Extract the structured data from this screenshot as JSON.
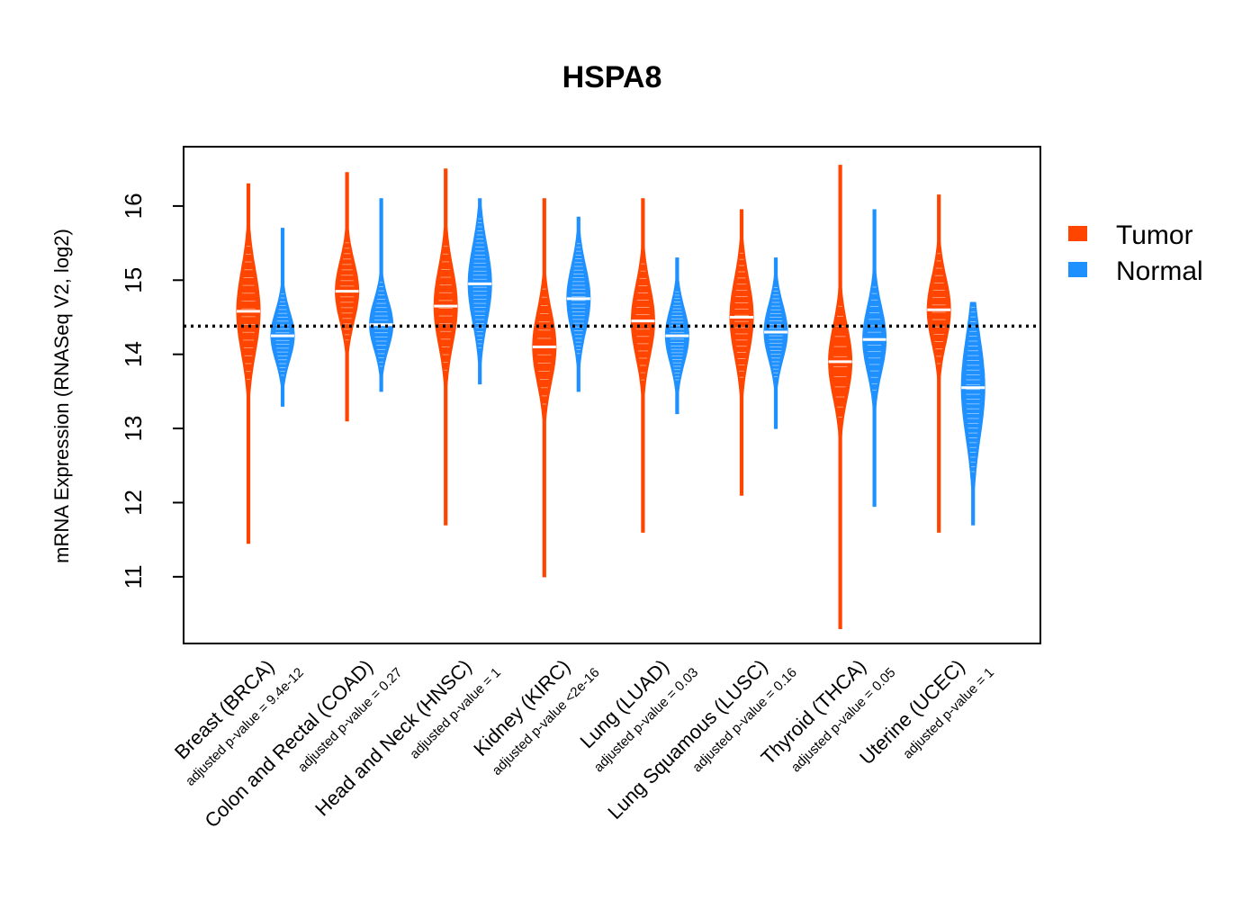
{
  "chart_data": {
    "type": "violin",
    "title": "HSPA8",
    "ylabel": "mRNA Expression (RNASeq V2, log2)",
    "xlabel": "",
    "ylim": [
      10.1,
      16.8
    ],
    "yticks": [
      11,
      12,
      13,
      14,
      15,
      16
    ],
    "reference_line": 14.38,
    "legend": {
      "position": "right",
      "items": [
        {
          "name": "Tumor",
          "color": "#FF4500"
        },
        {
          "name": "Normal",
          "color": "#1E90FF"
        }
      ]
    },
    "categories": [
      {
        "label": "Breast (BRCA)",
        "subtitle": "adjusted p-value = 9.4e-12",
        "tumor": {
          "min": 11.45,
          "max": 16.3,
          "median": 14.58,
          "q1": 14.2,
          "q3": 14.95
        },
        "normal": {
          "min": 13.3,
          "max": 15.7,
          "median": 14.25,
          "q1": 14.0,
          "q3": 14.45
        }
      },
      {
        "label": "Colon and Rectal (COAD)",
        "subtitle": "adjusted p-value = 0.27",
        "tumor": {
          "min": 13.1,
          "max": 16.45,
          "median": 14.85,
          "q1": 14.55,
          "q3": 15.1
        },
        "normal": {
          "min": 13.5,
          "max": 16.1,
          "median": 14.4,
          "q1": 14.15,
          "q3": 14.6
        }
      },
      {
        "label": "Head and Neck (HNSC)",
        "subtitle": "adjusted p-value = 1",
        "tumor": {
          "min": 11.7,
          "max": 16.5,
          "median": 14.65,
          "q1": 14.3,
          "q3": 15.0
        },
        "normal": {
          "min": 13.6,
          "max": 16.1,
          "median": 14.95,
          "q1": 14.6,
          "q3": 15.3
        }
      },
      {
        "label": "Kidney (KIRC)",
        "subtitle": "adjusted p-value <2e-16",
        "tumor": {
          "min": 11.0,
          "max": 16.1,
          "median": 14.1,
          "q1": 13.8,
          "q3": 14.45
        },
        "normal": {
          "min": 13.5,
          "max": 15.85,
          "median": 14.75,
          "q1": 14.45,
          "q3": 15.05
        }
      },
      {
        "label": "Lung (LUAD)",
        "subtitle": "adjusted p-value = 0.03",
        "tumor": {
          "min": 11.6,
          "max": 16.1,
          "median": 14.45,
          "q1": 14.15,
          "q3": 14.8
        },
        "normal": {
          "min": 13.2,
          "max": 15.3,
          "median": 14.25,
          "q1": 14.0,
          "q3": 14.5
        }
      },
      {
        "label": "Lung Squamous (LUSC)",
        "subtitle": "adjusted p-value = 0.16",
        "tumor": {
          "min": 12.1,
          "max": 15.95,
          "median": 14.5,
          "q1": 14.15,
          "q3": 14.85
        },
        "normal": {
          "min": 13.0,
          "max": 15.3,
          "median": 14.3,
          "q1": 14.05,
          "q3": 14.55
        }
      },
      {
        "label": "Thyroid (THCA)",
        "subtitle": "adjusted p-value = 0.05",
        "tumor": {
          "min": 10.3,
          "max": 16.55,
          "median": 13.9,
          "q1": 13.6,
          "q3": 14.25
        },
        "normal": {
          "min": 11.95,
          "max": 15.95,
          "median": 14.2,
          "q1": 13.9,
          "q3": 14.5
        }
      },
      {
        "label": "Uterine (UCEC)",
        "subtitle": "adjusted p-value = 1",
        "tumor": {
          "min": 11.6,
          "max": 16.15,
          "median": 14.6,
          "q1": 14.3,
          "q3": 14.9
        },
        "normal": {
          "min": 11.7,
          "max": 14.7,
          "median": 13.55,
          "q1": 13.1,
          "q3": 14.0
        }
      }
    ]
  }
}
